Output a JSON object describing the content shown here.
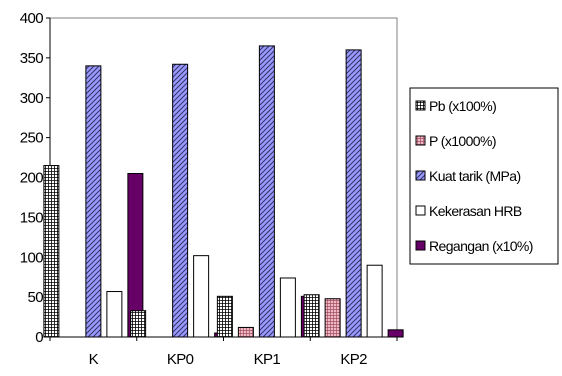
{
  "chart_data": {
    "type": "bar",
    "title": "",
    "xlabel": "",
    "ylabel": "",
    "categories": [
      "K",
      "KP0",
      "KP1",
      "KP2"
    ],
    "ylim": [
      0,
      400
    ],
    "yticks": [
      0,
      50,
      100,
      150,
      200,
      250,
      300,
      350,
      400
    ],
    "grid": false,
    "legend_position": "right",
    "series": [
      {
        "name": "Pb (x100%)",
        "values": [
          215,
          33,
          51,
          53
        ],
        "fill": "#ffffff",
        "pattern": "grid"
      },
      {
        "name": "P (x1000%)",
        "values": [
          0,
          0,
          12,
          48
        ],
        "fill": "#f0b8c4",
        "pattern": "dots"
      },
      {
        "name": "Kuat tarik (MPa)",
        "values": [
          340,
          342,
          365,
          360
        ],
        "fill": "#9999ff",
        "pattern": "diag"
      },
      {
        "name": "Kekerasan HRB",
        "values": [
          57,
          102,
          74,
          90
        ],
        "fill": "#ffffff",
        "pattern": "none"
      },
      {
        "name": "Regangan (x10%)",
        "values": [
          205,
          5,
          51,
          9
        ],
        "fill": "#660066",
        "pattern": "none"
      }
    ]
  }
}
